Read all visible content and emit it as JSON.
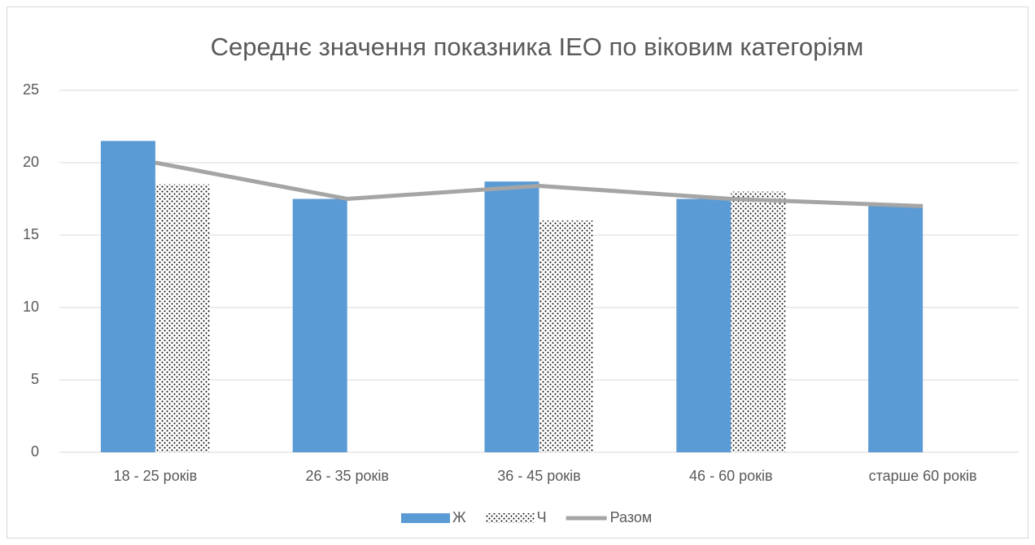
{
  "chart_data": {
    "type": "bar",
    "title": "Середнє значення показника IEO по віковим категоріям",
    "categories": [
      "18 - 25 років",
      "26 - 35 років",
      "36 - 45 років",
      "46 - 60 років",
      "старше 60 років"
    ],
    "series": [
      {
        "name": "Ж",
        "type": "bar",
        "color": "#5b9bd5",
        "values": [
          21.5,
          17.5,
          18.7,
          17.5,
          17
        ]
      },
      {
        "name": "Ч",
        "type": "bar",
        "color": "#000000",
        "pattern": "dots",
        "values": [
          18.5,
          null,
          16,
          18,
          null
        ]
      },
      {
        "name": "Разом",
        "type": "line",
        "color": "#a5a5a5",
        "values": [
          20,
          17.5,
          18.4,
          17.5,
          17
        ]
      }
    ],
    "ylim": [
      0,
      25
    ],
    "yticks": [
      0,
      5,
      10,
      15,
      20,
      25
    ],
    "grid": true,
    "legend": "bottom"
  }
}
